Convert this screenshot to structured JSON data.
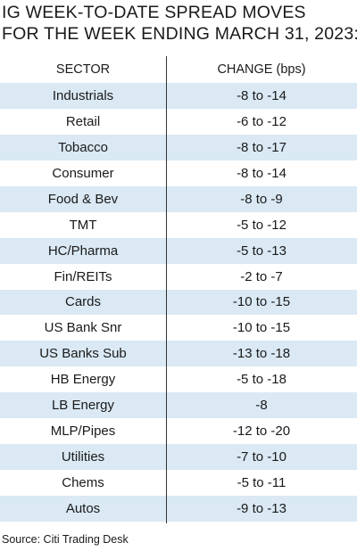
{
  "title": {
    "line1": "IG WEEK-TO-DATE SPREAD MOVES",
    "line2": "FOR THE WEEK ENDING MARCH 31, 2023:"
  },
  "table": {
    "headers": {
      "sector": "SECTOR",
      "change": "CHANGE (bps)"
    },
    "rows": [
      {
        "sector": "Industrials",
        "change": "-8 to -14"
      },
      {
        "sector": "Retail",
        "change": "-6 to -12"
      },
      {
        "sector": "Tobacco",
        "change": "-8 to -17"
      },
      {
        "sector": "Consumer",
        "change": "-8 to -14"
      },
      {
        "sector": "Food & Bev",
        "change": "-8 to -9"
      },
      {
        "sector": "TMT",
        "change": "-5 to -12"
      },
      {
        "sector": "HC/Pharma",
        "change": "-5 to -13"
      },
      {
        "sector": "Fin/REITs",
        "change": "-2 to -7"
      },
      {
        "sector": "Cards",
        "change": "-10 to -15"
      },
      {
        "sector": "US Bank Snr",
        "change": "-10 to -15"
      },
      {
        "sector": "US Banks Sub",
        "change": "-13 to -18"
      },
      {
        "sector": "HB Energy",
        "change": "-5 to -18"
      },
      {
        "sector": "LB Energy",
        "change": "-8"
      },
      {
        "sector": "MLP/Pipes",
        "change": "-12 to -20"
      },
      {
        "sector": "Utilities",
        "change": "-7 to -10"
      },
      {
        "sector": "Chems",
        "change": "-5 to -11"
      },
      {
        "sector": "Autos",
        "change": "-9 to -13"
      }
    ]
  },
  "source": "Source: Citi Trading Desk",
  "colors": {
    "row_shade": "#dae9f4",
    "text": "#1a1a1a",
    "divider": "#333333"
  }
}
